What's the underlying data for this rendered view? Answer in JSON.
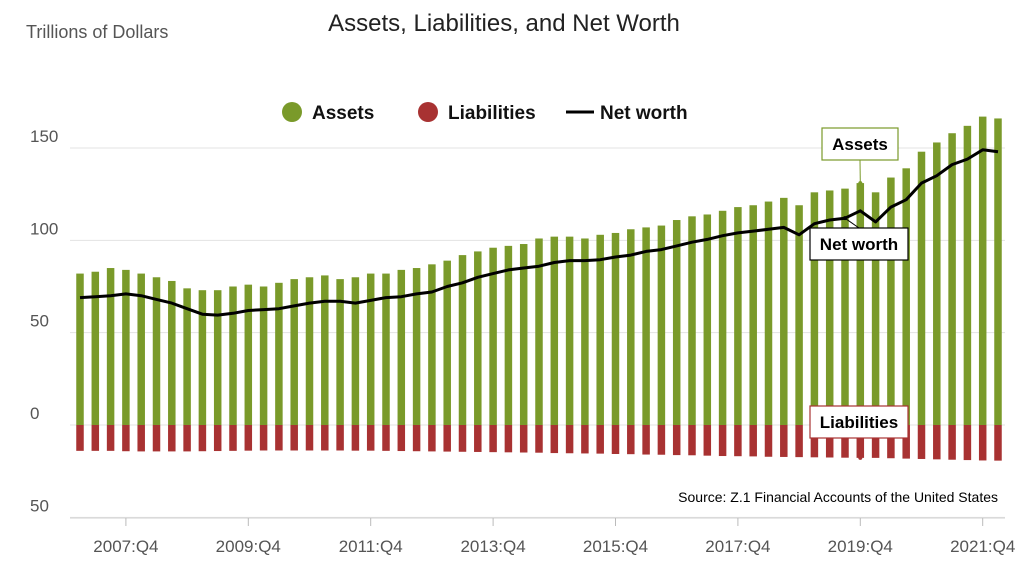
{
  "chart_data": {
    "type": "bar",
    "title": "Assets, Liabilities, and Net Worth",
    "ylabel": "Trillions of Dollars",
    "ylim": [
      -50,
      170
    ],
    "yticks": [
      {
        "value": 150,
        "label": "150"
      },
      {
        "value": 100,
        "label": "100"
      },
      {
        "value": 50,
        "label": "50"
      },
      {
        "value": 0,
        "label": "0"
      },
      {
        "value": -50,
        "label": "50"
      }
    ],
    "x_tick_labels": [
      {
        "index": 3,
        "label": "2007:Q4"
      },
      {
        "index": 11,
        "label": "2009:Q4"
      },
      {
        "index": 19,
        "label": "2011:Q4"
      },
      {
        "index": 27,
        "label": "2013:Q4"
      },
      {
        "index": 35,
        "label": "2015:Q4"
      },
      {
        "index": 43,
        "label": "2017:Q4"
      },
      {
        "index": 51,
        "label": "2019:Q4"
      },
      {
        "index": 59,
        "label": "2021:Q4"
      }
    ],
    "legend": {
      "placement": "top",
      "items": [
        {
          "label": "Assets",
          "marker": "circle",
          "color": "#7a9a2a"
        },
        {
          "label": "Liabilities",
          "marker": "circle",
          "color": "#a83232"
        },
        {
          "label": "Net worth",
          "marker": "line",
          "color": "#000000"
        }
      ]
    },
    "series": [
      {
        "name": "Assets",
        "color": "#7a9a2a",
        "values": [
          82,
          83,
          85,
          84,
          82,
          80,
          78,
          74,
          73,
          73,
          75,
          76,
          75,
          77,
          79,
          80,
          81,
          79,
          80,
          82,
          82,
          84,
          85,
          87,
          89,
          92,
          94,
          96,
          97,
          98,
          101,
          102,
          102,
          101,
          103,
          104,
          106,
          107,
          108,
          111,
          113,
          114,
          116,
          118,
          119,
          121,
          123,
          119,
          126,
          127,
          128,
          131,
          126,
          134,
          139,
          148,
          153,
          158,
          162,
          167,
          166
        ]
      },
      {
        "name": "Liabilities",
        "color": "#a83232",
        "values": [
          -14,
          -14,
          -14,
          -14.2,
          -14.3,
          -14.3,
          -14.3,
          -14.3,
          -14.2,
          -14.1,
          -14,
          -13.9,
          -13.8,
          -13.8,
          -13.8,
          -13.8,
          -13.8,
          -13.8,
          -13.9,
          -13.9,
          -14,
          -14.1,
          -14.2,
          -14.3,
          -14.4,
          -14.5,
          -14.6,
          -14.7,
          -14.8,
          -14.9,
          -15,
          -15.2,
          -15.3,
          -15.4,
          -15.5,
          -15.7,
          -15.8,
          -16,
          -16.1,
          -16.3,
          -16.4,
          -16.6,
          -16.8,
          -16.9,
          -17,
          -17.2,
          -17.3,
          -17.4,
          -17.5,
          -17.6,
          -17.7,
          -17.8,
          -17.8,
          -18,
          -18.2,
          -18.4,
          -18.6,
          -18.8,
          -19,
          -19.2,
          -19.3
        ]
      },
      {
        "name": "Net worth",
        "type": "line",
        "color": "#000000",
        "values": [
          69,
          69.5,
          70,
          71,
          70,
          68,
          66,
          63,
          60,
          59.5,
          60.5,
          62,
          62.5,
          63,
          64.5,
          66,
          67,
          67,
          66,
          67.5,
          69,
          69.5,
          71,
          72,
          75,
          77,
          80,
          82,
          84,
          85,
          86,
          88,
          89,
          89,
          89.5,
          91,
          92,
          94,
          95,
          97,
          99,
          100.5,
          102.5,
          104,
          105,
          106,
          107,
          103,
          109,
          111,
          112,
          116,
          110,
          118,
          122,
          131,
          135,
          141,
          144,
          149,
          148
        ]
      }
    ],
    "annotations": [
      {
        "label": "Assets",
        "border_color": "#7a9a2a",
        "target_index": 51,
        "target_series": "Assets"
      },
      {
        "label": "Net worth",
        "border_color": "#000000",
        "target_index": 50,
        "target_series": "Net worth"
      },
      {
        "label": "Liabilities",
        "border_color": "#a83232",
        "target_index": 51,
        "target_series": "Liabilities"
      }
    ],
    "source": "Source: Z.1 Financial Accounts of the United States",
    "grid": true
  }
}
